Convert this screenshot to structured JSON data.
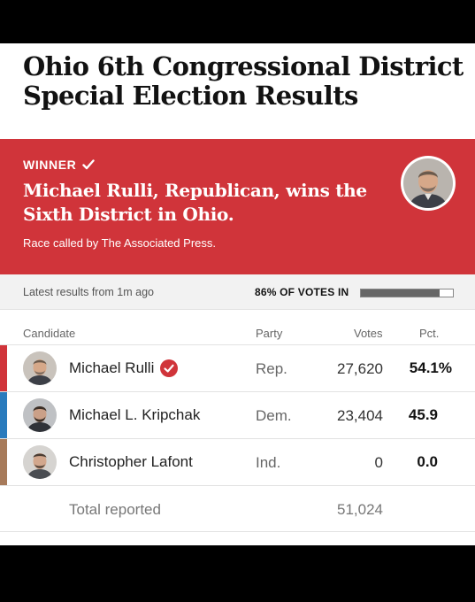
{
  "headline": "Ohio 6th Congressional District Special Election Results",
  "winner": {
    "tag": "WINNER",
    "headline": "Michael Rulli, Republican, wins the Sixth District in Ohio.",
    "called_by": "Race called by The Associated Press."
  },
  "status": {
    "latest": "Latest results from 1m ago",
    "votes_in": "86% OF VOTES IN",
    "votes_in_fraction": 0.86
  },
  "columns": {
    "candidate": "Candidate",
    "party": "Party",
    "votes": "Votes",
    "pct": "Pct."
  },
  "candidates": [
    {
      "name": "Michael Rulli",
      "party": "Rep.",
      "votes": "27,620",
      "pct": "54.1%",
      "color": "#d0343a",
      "winner": true
    },
    {
      "name": "Michael L. Kripchak",
      "party": "Dem.",
      "votes": "23,404",
      "pct": "45.9",
      "color": "#2a7bbd",
      "winner": false
    },
    {
      "name": "Christopher Lafont",
      "party": "Ind.",
      "votes": "0",
      "pct": "0.0",
      "color": "#a77a5a",
      "winner": false
    }
  ],
  "total": {
    "label": "Total reported",
    "votes": "51,024"
  },
  "colors": {
    "winner_banner": "#d0343a",
    "republican": "#d0343a",
    "democrat": "#2a7bbd",
    "independent": "#a77a5a"
  }
}
